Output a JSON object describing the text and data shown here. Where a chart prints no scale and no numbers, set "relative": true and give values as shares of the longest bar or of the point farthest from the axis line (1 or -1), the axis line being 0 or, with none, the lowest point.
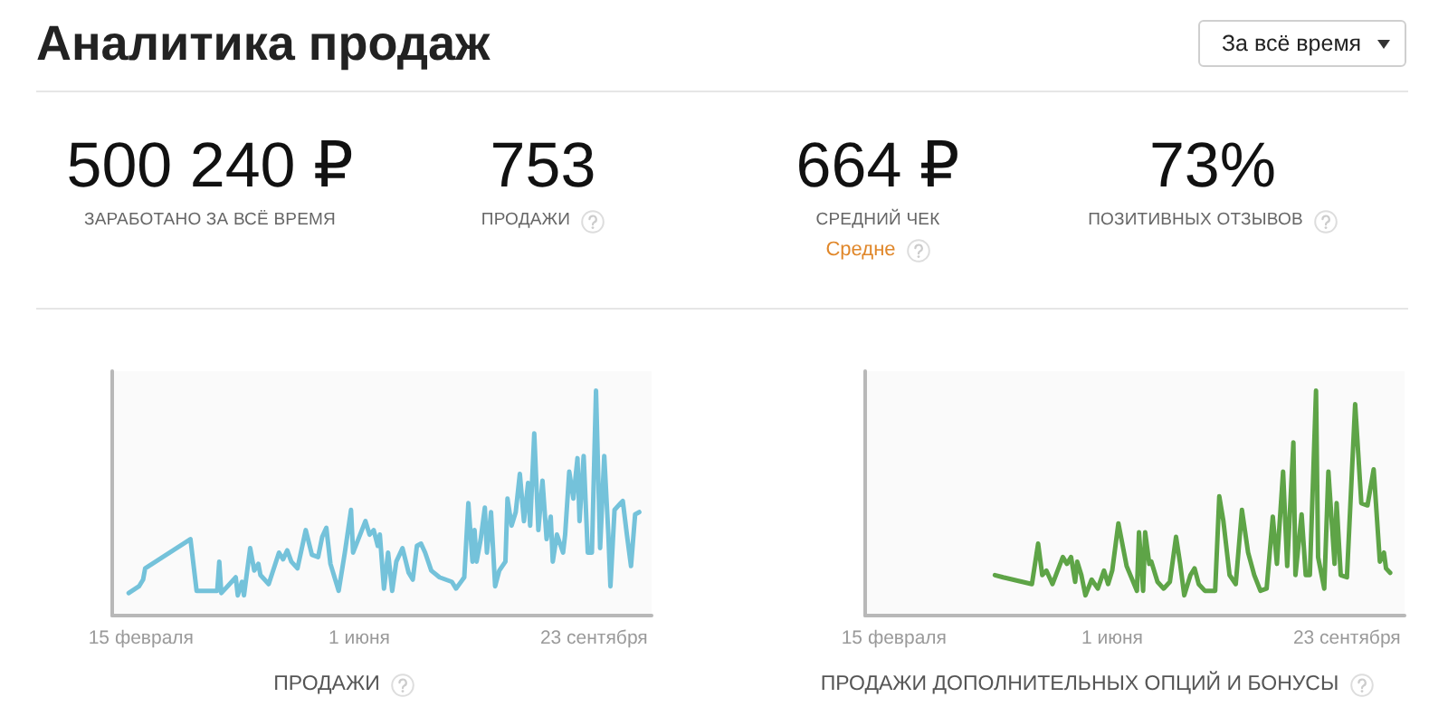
{
  "chart_data": [
    {
      "type": "other",
      "title": "Аналитика продаж",
      "annotations": [
        "За всё время",
        "500 240 ₽",
        "ЗАРАБОТАНО ЗА ВСЁ ВРЕМЯ",
        "753",
        "ПРОДАЖИ",
        "664 ₽",
        "СРЕДНИЙ ЧЕК",
        "Средне",
        "73%",
        "ПОЗИТИВНЫХ ОТЗЫВОВ"
      ]
    },
    {
      "type": "line",
      "relative": true,
      "color": "#74c2da",
      "xlabel": "ПРОДАЖИ",
      "xlim": [
        "--02-01",
        "--10-21"
      ],
      "xticks": [
        {
          "value": "--02-15",
          "label": "15 февраля"
        },
        {
          "value": "--06-01",
          "label": "1 июня"
        },
        {
          "value": "--09-23",
          "label": "23 сентября"
        }
      ],
      "x": [
        "--02-09",
        "--02-14",
        "--02-16",
        "--02-17",
        "--03-11",
        "--03-14",
        "--03-24",
        "--03-25",
        "--03-26",
        "--03-31",
        "--04-02",
        "--04-03",
        "--04-05",
        "--04-06",
        "--04-09",
        "--04-11",
        "--04-13",
        "--04-14",
        "--04-18",
        "--04-23",
        "--04-25",
        "--04-27",
        "--04-29",
        "--05-02",
        "--05-06",
        "--05-09",
        "--05-12",
        "--05-14",
        "--05-16",
        "--05-18",
        "--05-20",
        "--05-22",
        "--05-25",
        "--05-28",
        "--05-29",
        "--06-04",
        "--06-06",
        "--06-08",
        "--06-10",
        "--06-11",
        "--06-13",
        "--06-15",
        "--06-17",
        "--06-19",
        "--06-22",
        "--06-25",
        "--06-27",
        "--06-29",
        "--07-01",
        "--07-03",
        "--07-06",
        "--07-10",
        "--07-16",
        "--07-18",
        "--07-22",
        "--07-24",
        "--07-26",
        "--07-27",
        "--07-28",
        "--07-30",
        "--08-01",
        "--08-02",
        "--08-04",
        "--08-06",
        "--08-08",
        "--08-11",
        "--08-12",
        "--08-14",
        "--08-16",
        "--08-18",
        "--08-20",
        "--08-22",
        "--08-23",
        "--08-25",
        "--08-27",
        "--08-29",
        "--08-31",
        "--09-02",
        "--09-03",
        "--09-05",
        "--09-08",
        "--09-09",
        "--09-11",
        "--09-13",
        "--09-15",
        "--09-16",
        "--09-18",
        "--09-20",
        "--09-22",
        "--09-24",
        "--09-26",
        "--09-28",
        "--09-30",
        "--10-01",
        "--10-03",
        "--10-06",
        "--10-07",
        "--10-09",
        "--10-11",
        "--10-13",
        "--10-15"
      ],
      "values": [
        0.1,
        0.13,
        0.16,
        0.21,
        0.34,
        0.11,
        0.11,
        0.24,
        0.1,
        0.15,
        0.17,
        0.09,
        0.15,
        0.09,
        0.3,
        0.2,
        0.23,
        0.18,
        0.14,
        0.28,
        0.25,
        0.29,
        0.24,
        0.21,
        0.38,
        0.27,
        0.26,
        0.35,
        0.39,
        0.23,
        0.17,
        0.11,
        0.28,
        0.47,
        0.28,
        0.42,
        0.36,
        0.38,
        0.31,
        0.36,
        0.12,
        0.28,
        0.11,
        0.24,
        0.3,
        0.19,
        0.16,
        0.31,
        0.32,
        0.28,
        0.2,
        0.17,
        0.15,
        0.12,
        0.17,
        0.5,
        0.24,
        0.38,
        0.24,
        0.34,
        0.48,
        0.28,
        0.46,
        0.13,
        0.2,
        0.24,
        0.52,
        0.4,
        0.46,
        0.63,
        0.42,
        0.59,
        0.4,
        0.81,
        0.38,
        0.6,
        0.34,
        0.44,
        0.24,
        0.36,
        0.28,
        0.36,
        0.64,
        0.52,
        0.7,
        0.42,
        0.71,
        0.28,
        0.28,
        1,
        0.3,
        0.71,
        0.36,
        0.13,
        0.47,
        0.5,
        0.51,
        0.36,
        0.22,
        0.45,
        0.46
      ]
    },
    {
      "type": "line",
      "relative": true,
      "color": "#5ea447",
      "xlabel": "ПРОДАЖИ ДОПОЛНИТЕЛЬНЫХ ОПЦИЙ И БОНУСЫ",
      "xlim": [
        "--02-01",
        "--10-21"
      ],
      "xticks": [
        {
          "value": "--02-15",
          "label": "15 февраля"
        },
        {
          "value": "--06-01",
          "label": "1 июня"
        },
        {
          "value": "--09-23",
          "label": "23 сентября"
        }
      ],
      "x": [
        "--04-05",
        "--04-09",
        "--04-23",
        "--04-26",
        "--04-28",
        "--04-30",
        "--05-03",
        "--05-08",
        "--05-10",
        "--05-12",
        "--05-14",
        "--05-15",
        "--05-17",
        "--05-19",
        "--05-22",
        "--05-25",
        "--05-28",
        "--05-30",
        "--06-01",
        "--06-04",
        "--06-08",
        "--06-13",
        "--06-14",
        "--06-16",
        "--06-17",
        "--06-19",
        "--06-20",
        "--06-23",
        "--06-26",
        "--06-29",
        "--07-02",
        "--07-04",
        "--07-06",
        "--07-09",
        "--07-11",
        "--07-13",
        "--07-16",
        "--07-21",
        "--07-23",
        "--07-25",
        "--07-28",
        "--07-31",
        "--08-03",
        "--08-06",
        "--08-09",
        "--08-12",
        "--08-15",
        "--08-18",
        "--08-20",
        "--08-23",
        "--08-25",
        "--08-28",
        "--08-29",
        "--09-01",
        "--09-03",
        "--09-05",
        "--09-08",
        "--09-09",
        "--09-12",
        "--09-14",
        "--09-17",
        "--09-18",
        "--09-20",
        "--09-23",
        "--09-27",
        "--09-30",
        "--10-03",
        "--10-06",
        "--10-09",
        "--10-11",
        "--10-12",
        "--10-14"
      ],
      "values": [
        0.18,
        0.17,
        0.14,
        0.32,
        0.18,
        0.2,
        0.14,
        0.26,
        0.23,
        0.26,
        0.15,
        0.24,
        0.18,
        0.09,
        0.16,
        0.12,
        0.2,
        0.14,
        0.2,
        0.41,
        0.22,
        0.11,
        0.37,
        0.11,
        0.37,
        0.23,
        0.24,
        0.15,
        0.12,
        0.15,
        0.35,
        0.23,
        0.09,
        0.18,
        0.21,
        0.14,
        0.11,
        0.11,
        0.53,
        0.42,
        0.18,
        0.14,
        0.47,
        0.28,
        0.18,
        0.11,
        0.12,
        0.44,
        0.23,
        0.64,
        0.22,
        0.77,
        0.18,
        0.45,
        0.18,
        0.18,
        1,
        0.26,
        0.12,
        0.64,
        0.23,
        0.5,
        0.18,
        0.17,
        0.94,
        0.5,
        0.49,
        0.65,
        0.24,
        0.28,
        0.21,
        0.19
      ]
    }
  ]
}
